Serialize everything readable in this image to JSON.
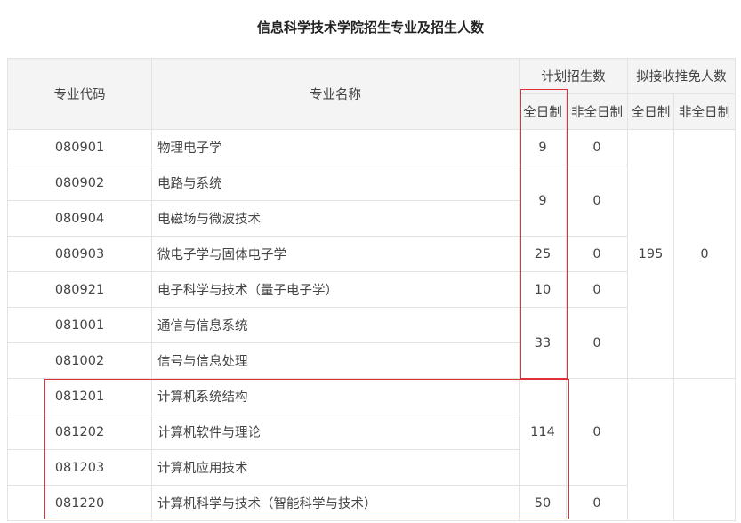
{
  "title": "信息科学技术学院招生专业及招生人数",
  "headers": {
    "code": "专业代码",
    "name": "专业名称",
    "plan": "计划招生数",
    "exempt": "拟接收推免人数",
    "full": "全日制",
    "part": "非全日制"
  },
  "rows": [
    {
      "code": "080901",
      "name": "物理电子学"
    },
    {
      "code": "080902",
      "name": "电路与系统"
    },
    {
      "code": "080904",
      "name": "电磁场与微波技术"
    },
    {
      "code": "080903",
      "name": "微电子学与固体电子学"
    },
    {
      "code": "080921",
      "name": "电子科学与技术（量子电子学）"
    },
    {
      "code": "081001",
      "name": "通信与信息系统"
    },
    {
      "code": "081002",
      "name": "信号与信息处理"
    },
    {
      "code": "081201",
      "name": "计算机系统结构"
    },
    {
      "code": "081202",
      "name": "计算机软件与理论"
    },
    {
      "code": "081203",
      "name": "计算机应用技术"
    },
    {
      "code": "081220",
      "name": "计算机科学与技术（智能科学与技术）"
    }
  ],
  "plan_groups": [
    {
      "full": "9",
      "part": "0"
    },
    {
      "full": "9",
      "part": "0"
    },
    {
      "full": "25",
      "part": "0"
    },
    {
      "full": "10",
      "part": "0"
    },
    {
      "full": "33",
      "part": "0"
    },
    {
      "full": "114",
      "part": "0"
    },
    {
      "full": "50",
      "part": "0"
    }
  ],
  "exempt": {
    "full": "195",
    "part": "0"
  },
  "highlight_color": "#e0303a"
}
